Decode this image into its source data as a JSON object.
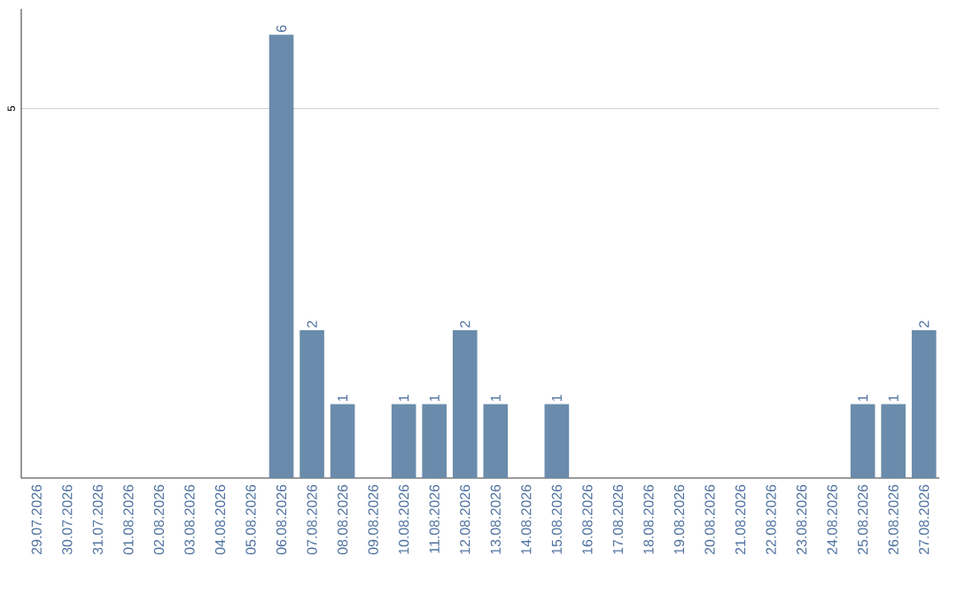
{
  "chart_data": {
    "type": "bar",
    "categories": [
      "29.07.2026",
      "30.07.2026",
      "31.07.2026",
      "01.08.2026",
      "02.08.2026",
      "03.08.2026",
      "04.08.2026",
      "05.08.2026",
      "06.08.2026",
      "07.08.2026",
      "08.08.2026",
      "09.08.2026",
      "10.08.2026",
      "11.08.2026",
      "12.08.2026",
      "13.08.2026",
      "14.08.2026",
      "15.08.2026",
      "16.08.2026",
      "17.08.2026",
      "18.08.2026",
      "19.08.2026",
      "20.08.2026",
      "21.08.2026",
      "22.08.2026",
      "23.08.2026",
      "24.08.2026",
      "25.08.2026",
      "26.08.2026",
      "27.08.2026"
    ],
    "values": [
      0,
      0,
      0,
      0,
      0,
      0,
      0,
      0,
      6,
      2,
      1,
      0,
      1,
      1,
      2,
      1,
      0,
      1,
      0,
      0,
      0,
      0,
      0,
      0,
      0,
      0,
      0,
      1,
      1,
      2
    ],
    "value_labels": [
      null,
      null,
      null,
      null,
      null,
      null,
      null,
      null,
      "6",
      "2",
      "1",
      null,
      "1",
      "1",
      "2",
      "1",
      null,
      "1",
      null,
      null,
      null,
      null,
      null,
      null,
      null,
      null,
      null,
      "1",
      "1",
      "2"
    ],
    "color": "#6a8bab",
    "ylim": [
      0,
      6.35
    ],
    "yticks": [
      5
    ],
    "grid": "y"
  }
}
